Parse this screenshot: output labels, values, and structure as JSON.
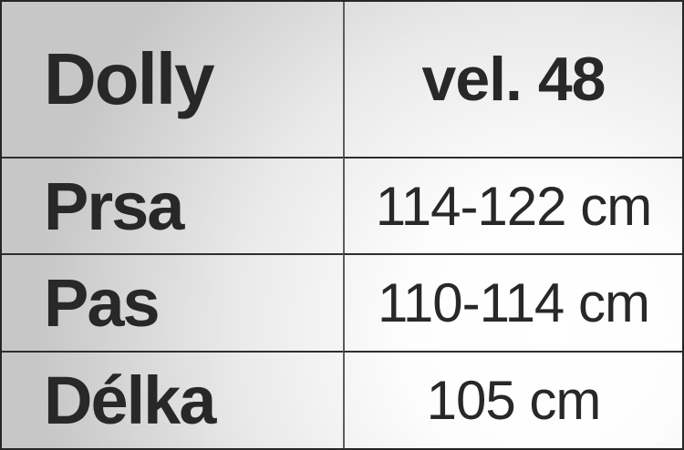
{
  "chart_data": {
    "type": "table",
    "title": "Dolly",
    "columns": [
      "Dolly",
      "vel. 48"
    ],
    "rows": [
      [
        "Prsa",
        "114-122 cm"
      ],
      [
        "Pas",
        "110-114 cm"
      ],
      [
        "Délka",
        "105 cm"
      ]
    ]
  },
  "table": {
    "product_name": "Dolly",
    "size_header": "vel. 48",
    "rows": [
      {
        "label": "Prsa",
        "value": "114-122 cm"
      },
      {
        "label": "Pas",
        "value": "110-114 cm"
      },
      {
        "label": "Délka",
        "value": "105 cm"
      }
    ]
  },
  "colors": {
    "text": "#282828",
    "border_outer": "#262626",
    "horizontal_rule": "#2e2e2e",
    "vertical_divider": "#5c5c5c",
    "background_gray": "#c7c7c7",
    "background_white": "#ffffff"
  }
}
